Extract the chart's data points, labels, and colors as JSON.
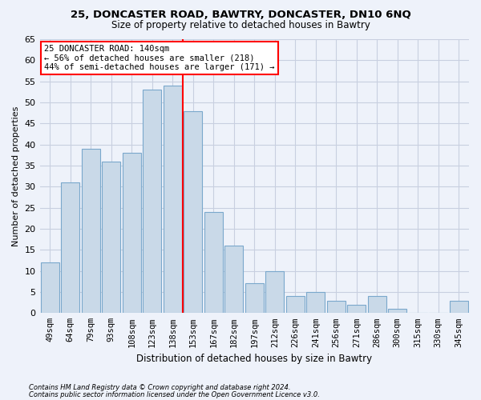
{
  "title_line1": "25, DONCASTER ROAD, BAWTRY, DONCASTER, DN10 6NQ",
  "title_line2": "Size of property relative to detached houses in Bawtry",
  "xlabel": "Distribution of detached houses by size in Bawtry",
  "ylabel": "Number of detached properties",
  "categories": [
    "49sqm",
    "64sqm",
    "79sqm",
    "93sqm",
    "108sqm",
    "123sqm",
    "138sqm",
    "153sqm",
    "167sqm",
    "182sqm",
    "197sqm",
    "212sqm",
    "226sqm",
    "241sqm",
    "256sqm",
    "271sqm",
    "286sqm",
    "300sqm",
    "315sqm",
    "330sqm",
    "345sqm"
  ],
  "values": [
    12,
    31,
    39,
    36,
    38,
    53,
    54,
    48,
    24,
    16,
    7,
    10,
    4,
    5,
    3,
    2,
    4,
    1,
    0,
    0,
    3
  ],
  "bar_color": "#c9d9e8",
  "bar_edge_color": "#7aa8cc",
  "grid_color": "#c8cfe0",
  "vline_x": 6.5,
  "vline_color": "red",
  "annotation_line1": "25 DONCASTER ROAD: 140sqm",
  "annotation_line2": "← 56% of detached houses are smaller (218)",
  "annotation_line3": "44% of semi-detached houses are larger (171) →",
  "annotation_box_color": "white",
  "annotation_box_edge_color": "red",
  "ylim": [
    0,
    65
  ],
  "yticks": [
    0,
    5,
    10,
    15,
    20,
    25,
    30,
    35,
    40,
    45,
    50,
    55,
    60,
    65
  ],
  "footer_line1": "Contains HM Land Registry data © Crown copyright and database right 2024.",
  "footer_line2": "Contains public sector information licensed under the Open Government Licence v3.0.",
  "bg_color": "#eef2fa"
}
